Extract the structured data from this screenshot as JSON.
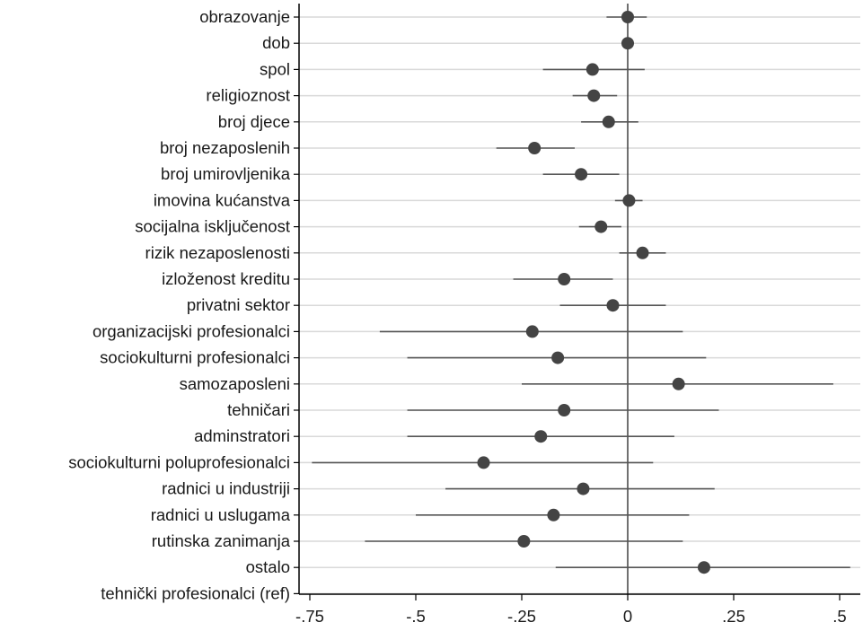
{
  "chart_data": {
    "type": "scatter",
    "subtype": "coefficient-plot",
    "title": "",
    "xlabel": "",
    "ylabel": "",
    "xlim": [
      -0.75,
      0.5
    ],
    "xticks": [
      -0.75,
      -0.5,
      -0.25,
      0,
      0.25,
      0.5
    ],
    "xtick_labels": [
      "-.75",
      "-.5",
      "-.25",
      "0",
      ".25",
      ".5"
    ],
    "grid": "horizontal",
    "reference_line_x": 0,
    "colors": {
      "point": "#444444",
      "ci": "#555555",
      "grid": "#d9d9d9",
      "axis": "#000000"
    },
    "categories": [
      "obrazovanje",
      "dob",
      "spol",
      "religioznost",
      "broj djece",
      "broj nezaposlenih",
      "broj umirovljenika",
      "imovina kućanstva",
      "socijalna isključenost",
      "rizik nezaposlenosti",
      "izloženost kreditu",
      "privatni sektor",
      "organizacijski profesionalci",
      "sociokulturni profesionalci",
      "samozaposleni",
      "tehničari",
      "adminstratori",
      "sociokulturni poluprofesionalci",
      "radnici u industriji",
      "radnici u uslugama",
      "rutinska zanimanja",
      "ostalo",
      "tehnički profesionalci (ref)"
    ],
    "estimates": [
      0.0,
      0.0,
      -0.083,
      -0.08,
      -0.045,
      -0.22,
      -0.11,
      0.003,
      -0.063,
      0.035,
      -0.15,
      -0.035,
      -0.225,
      -0.165,
      0.12,
      -0.15,
      -0.205,
      -0.34,
      -0.105,
      -0.175,
      -0.245,
      0.18,
      null
    ],
    "ci_low": [
      -0.05,
      0.0,
      -0.2,
      -0.13,
      -0.11,
      -0.31,
      -0.2,
      -0.03,
      -0.115,
      -0.02,
      -0.27,
      -0.16,
      -0.585,
      -0.52,
      -0.25,
      -0.52,
      -0.52,
      -0.745,
      -0.43,
      -0.5,
      -0.62,
      -0.17,
      null
    ],
    "ci_high": [
      0.045,
      0.0,
      0.04,
      -0.025,
      0.025,
      -0.125,
      -0.02,
      0.035,
      -0.015,
      0.09,
      -0.035,
      0.09,
      0.13,
      0.185,
      0.485,
      0.215,
      0.11,
      0.06,
      0.205,
      0.145,
      0.13,
      0.525,
      null
    ]
  }
}
